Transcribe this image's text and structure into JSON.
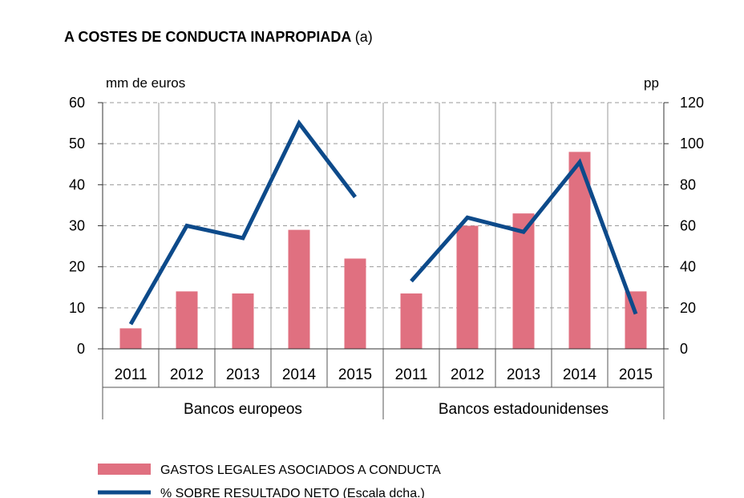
{
  "chart_data": {
    "type": "bar+line",
    "title": "A  COSTES DE CONDUCTA INAPROPIADA",
    "title_suffix": "(a)",
    "left_axis_unit": "mm de euros",
    "right_axis_unit": "pp",
    "ylim_left": [
      0,
      60
    ],
    "ylim_right": [
      0,
      120
    ],
    "yticks_left": [
      "0",
      "10",
      "20",
      "30",
      "40",
      "50",
      "60"
    ],
    "yticks_right": [
      "0",
      "20",
      "40",
      "60",
      "80",
      "100",
      "120"
    ],
    "categories": [
      "2011",
      "2012",
      "2013",
      "2014",
      "2015",
      "2011",
      "2012",
      "2013",
      "2014",
      "2015"
    ],
    "groups": [
      {
        "label": "Bancos europeos",
        "span": 5
      },
      {
        "label": "Bancos estadounidenses",
        "span": 5
      }
    ],
    "series": [
      {
        "name": "GASTOS LEGALES ASOCIADOS A CONDUCTA",
        "type": "bar",
        "axis": "left",
        "color": "#e07080",
        "values": [
          5,
          14,
          13.5,
          29,
          22,
          13.5,
          30,
          33,
          48,
          14
        ]
      },
      {
        "name": "% SOBRE RESULTADO NETO (Escala dcha.)",
        "type": "line",
        "axis": "right",
        "color": "#0d4a8a",
        "segments": [
          [
            12,
            60,
            54,
            110,
            74
          ],
          [
            33,
            64,
            57,
            91,
            17
          ]
        ]
      }
    ],
    "grid": true
  }
}
